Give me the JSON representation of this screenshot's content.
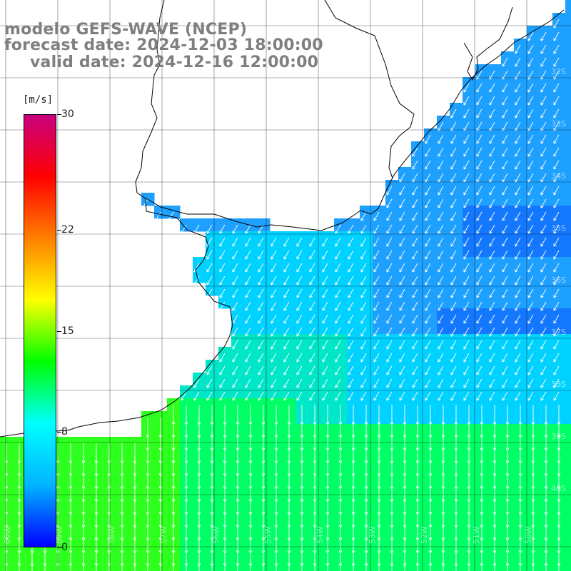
{
  "title": {
    "model": "modelo GEFS-WAVE (NCEP)",
    "forecast": "forecast date: 2024-12-03 18:00:00",
    "valid": "valid date: 2024-12-16 12:00:00"
  },
  "colorbar": {
    "unit": "[m/s]",
    "min": 0,
    "max": 30,
    "ticks": [
      "30",
      "22",
      "15",
      "8",
      "0"
    ],
    "stops": [
      "#0000ff",
      "#00b4ff",
      "#00ffff",
      "#00ff00",
      "#ffff00",
      "#ff8000",
      "#ff0000",
      "#c8007f"
    ]
  },
  "map": {
    "land_color": "#ffffff",
    "grid_color": "#000000",
    "lat_labels": [
      "32S",
      "33S",
      "34S",
      "35S",
      "36S",
      "37S",
      "38S",
      "39S",
      "40S"
    ],
    "lon_labels": [
      "60W",
      "59W",
      "58W",
      "57W",
      "56W",
      "55W",
      "54W",
      "53W",
      "52W",
      "51W",
      "50W"
    ],
    "field_colors": {
      "strong_blue": "#1478ff",
      "blue": "#1ea0ff",
      "cyan": "#00d2ff",
      "aqua": "#00e6c8",
      "green": "#00ff64",
      "bright_green": "#2dff1e"
    },
    "arrow_color": "#ffffff"
  }
}
